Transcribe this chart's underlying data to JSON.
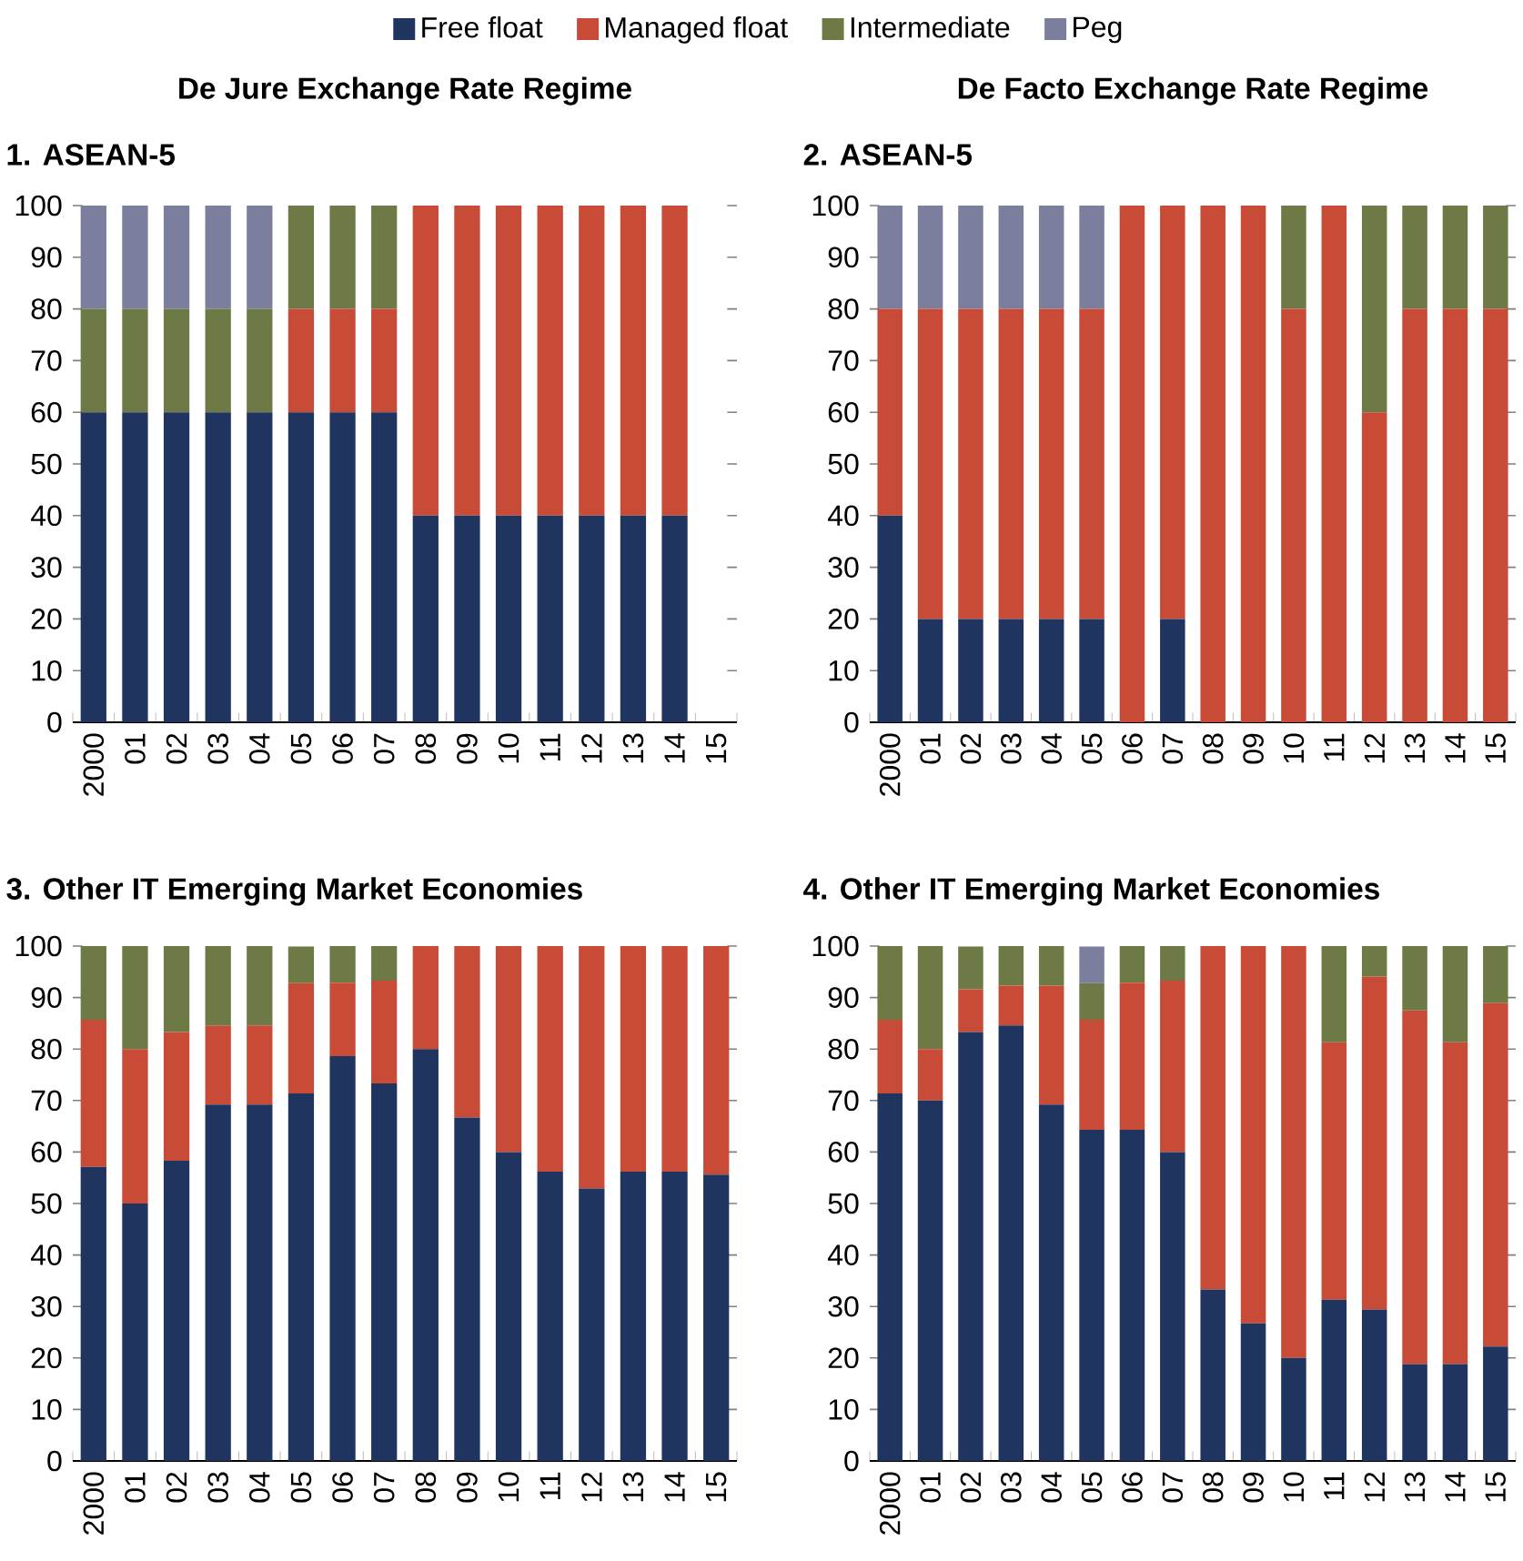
{
  "chart_data": [
    {
      "type": "bar",
      "stacked": true,
      "title": "De Jure Exchange Rate Regime",
      "subtitle": "1. ASEAN-5",
      "legend": "top",
      "categories": [
        "2000",
        "01",
        "02",
        "03",
        "04",
        "05",
        "06",
        "07",
        "08",
        "09",
        "10",
        "11",
        "12",
        "13",
        "14",
        "15"
      ],
      "ylim": [
        0,
        100
      ],
      "yticks": [
        0,
        10,
        20,
        30,
        40,
        50,
        60,
        70,
        80,
        90,
        100
      ],
      "series": [
        {
          "name": "Free float",
          "color": "#1f3560",
          "values": [
            60,
            60,
            60,
            60,
            60,
            60,
            60,
            60,
            40,
            40,
            40,
            40,
            40,
            40,
            40,
            null
          ]
        },
        {
          "name": "Managed float",
          "color": "#c84b37",
          "values": [
            0,
            0,
            0,
            0,
            0,
            20,
            20,
            20,
            60,
            60,
            60,
            60,
            60,
            60,
            60,
            null
          ]
        },
        {
          "name": "Intermediate",
          "color": "#6e7a45",
          "values": [
            20,
            20,
            20,
            20,
            20,
            20,
            20,
            20,
            0,
            0,
            0,
            0,
            0,
            0,
            0,
            null
          ]
        },
        {
          "name": "Peg",
          "color": "#7b7e9c",
          "values": [
            20,
            20,
            20,
            20,
            20,
            0,
            0,
            0,
            0,
            0,
            0,
            0,
            0,
            0,
            0,
            null
          ]
        }
      ]
    },
    {
      "type": "bar",
      "stacked": true,
      "title": "De Facto Exchange Rate Regime",
      "subtitle": "2. ASEAN-5",
      "categories": [
        "2000",
        "01",
        "02",
        "03",
        "04",
        "05",
        "06",
        "07",
        "08",
        "09",
        "10",
        "11",
        "12",
        "13",
        "14",
        "15"
      ],
      "ylim": [
        0,
        100
      ],
      "yticks": [
        0,
        10,
        20,
        30,
        40,
        50,
        60,
        70,
        80,
        90,
        100
      ],
      "series": [
        {
          "color": "#1f3560",
          "values": [
            40,
            20,
            20,
            20,
            20,
            20,
            0,
            20,
            0,
            0,
            0,
            0,
            0,
            0,
            0,
            0
          ]
        },
        {
          "color": "#c84b37",
          "values": [
            40,
            60,
            60,
            60,
            60,
            60,
            100,
            80,
            100,
            100,
            80,
            100,
            60,
            80,
            80,
            80
          ]
        },
        {
          "color": "#6e7a45",
          "values": [
            0,
            0,
            0,
            0,
            0,
            0,
            0,
            0,
            0,
            0,
            20,
            0,
            40,
            20,
            20,
            20
          ]
        },
        {
          "color": "#7b7e9c",
          "values": [
            20,
            20,
            20,
            20,
            20,
            20,
            0,
            0,
            0,
            0,
            0,
            0,
            0,
            0,
            0,
            0
          ]
        }
      ]
    },
    {
      "type": "bar",
      "stacked": true,
      "title": "3. Other IT Emerging Market Economies",
      "categories": [
        "2000",
        "01",
        "02",
        "03",
        "04",
        "05",
        "06",
        "07",
        "08",
        "09",
        "10",
        "11",
        "12",
        "13",
        "14",
        "15"
      ],
      "ylim": [
        0,
        100
      ],
      "yticks": [
        0,
        10,
        20,
        30,
        40,
        50,
        60,
        70,
        80,
        90,
        100
      ],
      "series": [
        {
          "color": "#1f3560",
          "values": [
            57.1,
            50,
            58.3,
            69.2,
            69.2,
            71.4,
            78.6,
            73.3,
            80,
            66.7,
            60,
            56.2,
            52.9,
            56.2,
            56.2,
            55.6
          ]
        },
        {
          "color": "#c84b37",
          "values": [
            28.6,
            30,
            25,
            15.4,
            15.4,
            21.4,
            14.3,
            20,
            20,
            33.3,
            40,
            43.8,
            47.1,
            43.8,
            43.8,
            44.4
          ]
        },
        {
          "color": "#6e7a45",
          "values": [
            14.3,
            20,
            16.7,
            15.4,
            15.4,
            7.1,
            7.1,
            6.7,
            0,
            0,
            0,
            0,
            0,
            0,
            0,
            0
          ]
        }
      ]
    },
    {
      "type": "bar",
      "stacked": true,
      "title": "4. Other IT Emerging Market Economies",
      "categories": [
        "2000",
        "01",
        "02",
        "03",
        "04",
        "05",
        "06",
        "07",
        "08",
        "09",
        "10",
        "11",
        "12",
        "13",
        "14",
        "15"
      ],
      "ylim": [
        0,
        100
      ],
      "yticks": [
        0,
        10,
        20,
        30,
        40,
        50,
        60,
        70,
        80,
        90,
        100
      ],
      "series": [
        {
          "color": "#1f3560",
          "values": [
            71.4,
            70,
            83.3,
            84.6,
            69.2,
            64.3,
            64.3,
            60,
            33.3,
            26.7,
            20,
            31.3,
            29.4,
            18.8,
            18.8,
            22.2
          ]
        },
        {
          "color": "#c84b37",
          "values": [
            14.3,
            10,
            8.3,
            7.7,
            23.1,
            21.4,
            28.6,
            33.3,
            66.7,
            73.3,
            80,
            50,
            64.7,
            68.7,
            62.5,
            66.7
          ]
        },
        {
          "color": "#6e7a45",
          "values": [
            14.3,
            20,
            8.3,
            7.7,
            7.7,
            7.1,
            7.1,
            6.7,
            0,
            0,
            0,
            18.7,
            5.9,
            12.5,
            18.7,
            11.1
          ]
        },
        {
          "color": "#7b7e9c",
          "values": [
            0,
            0,
            0,
            0,
            0,
            7.1,
            0,
            0,
            0,
            0,
            0,
            0,
            0,
            0,
            0,
            0
          ]
        }
      ]
    }
  ]
}
